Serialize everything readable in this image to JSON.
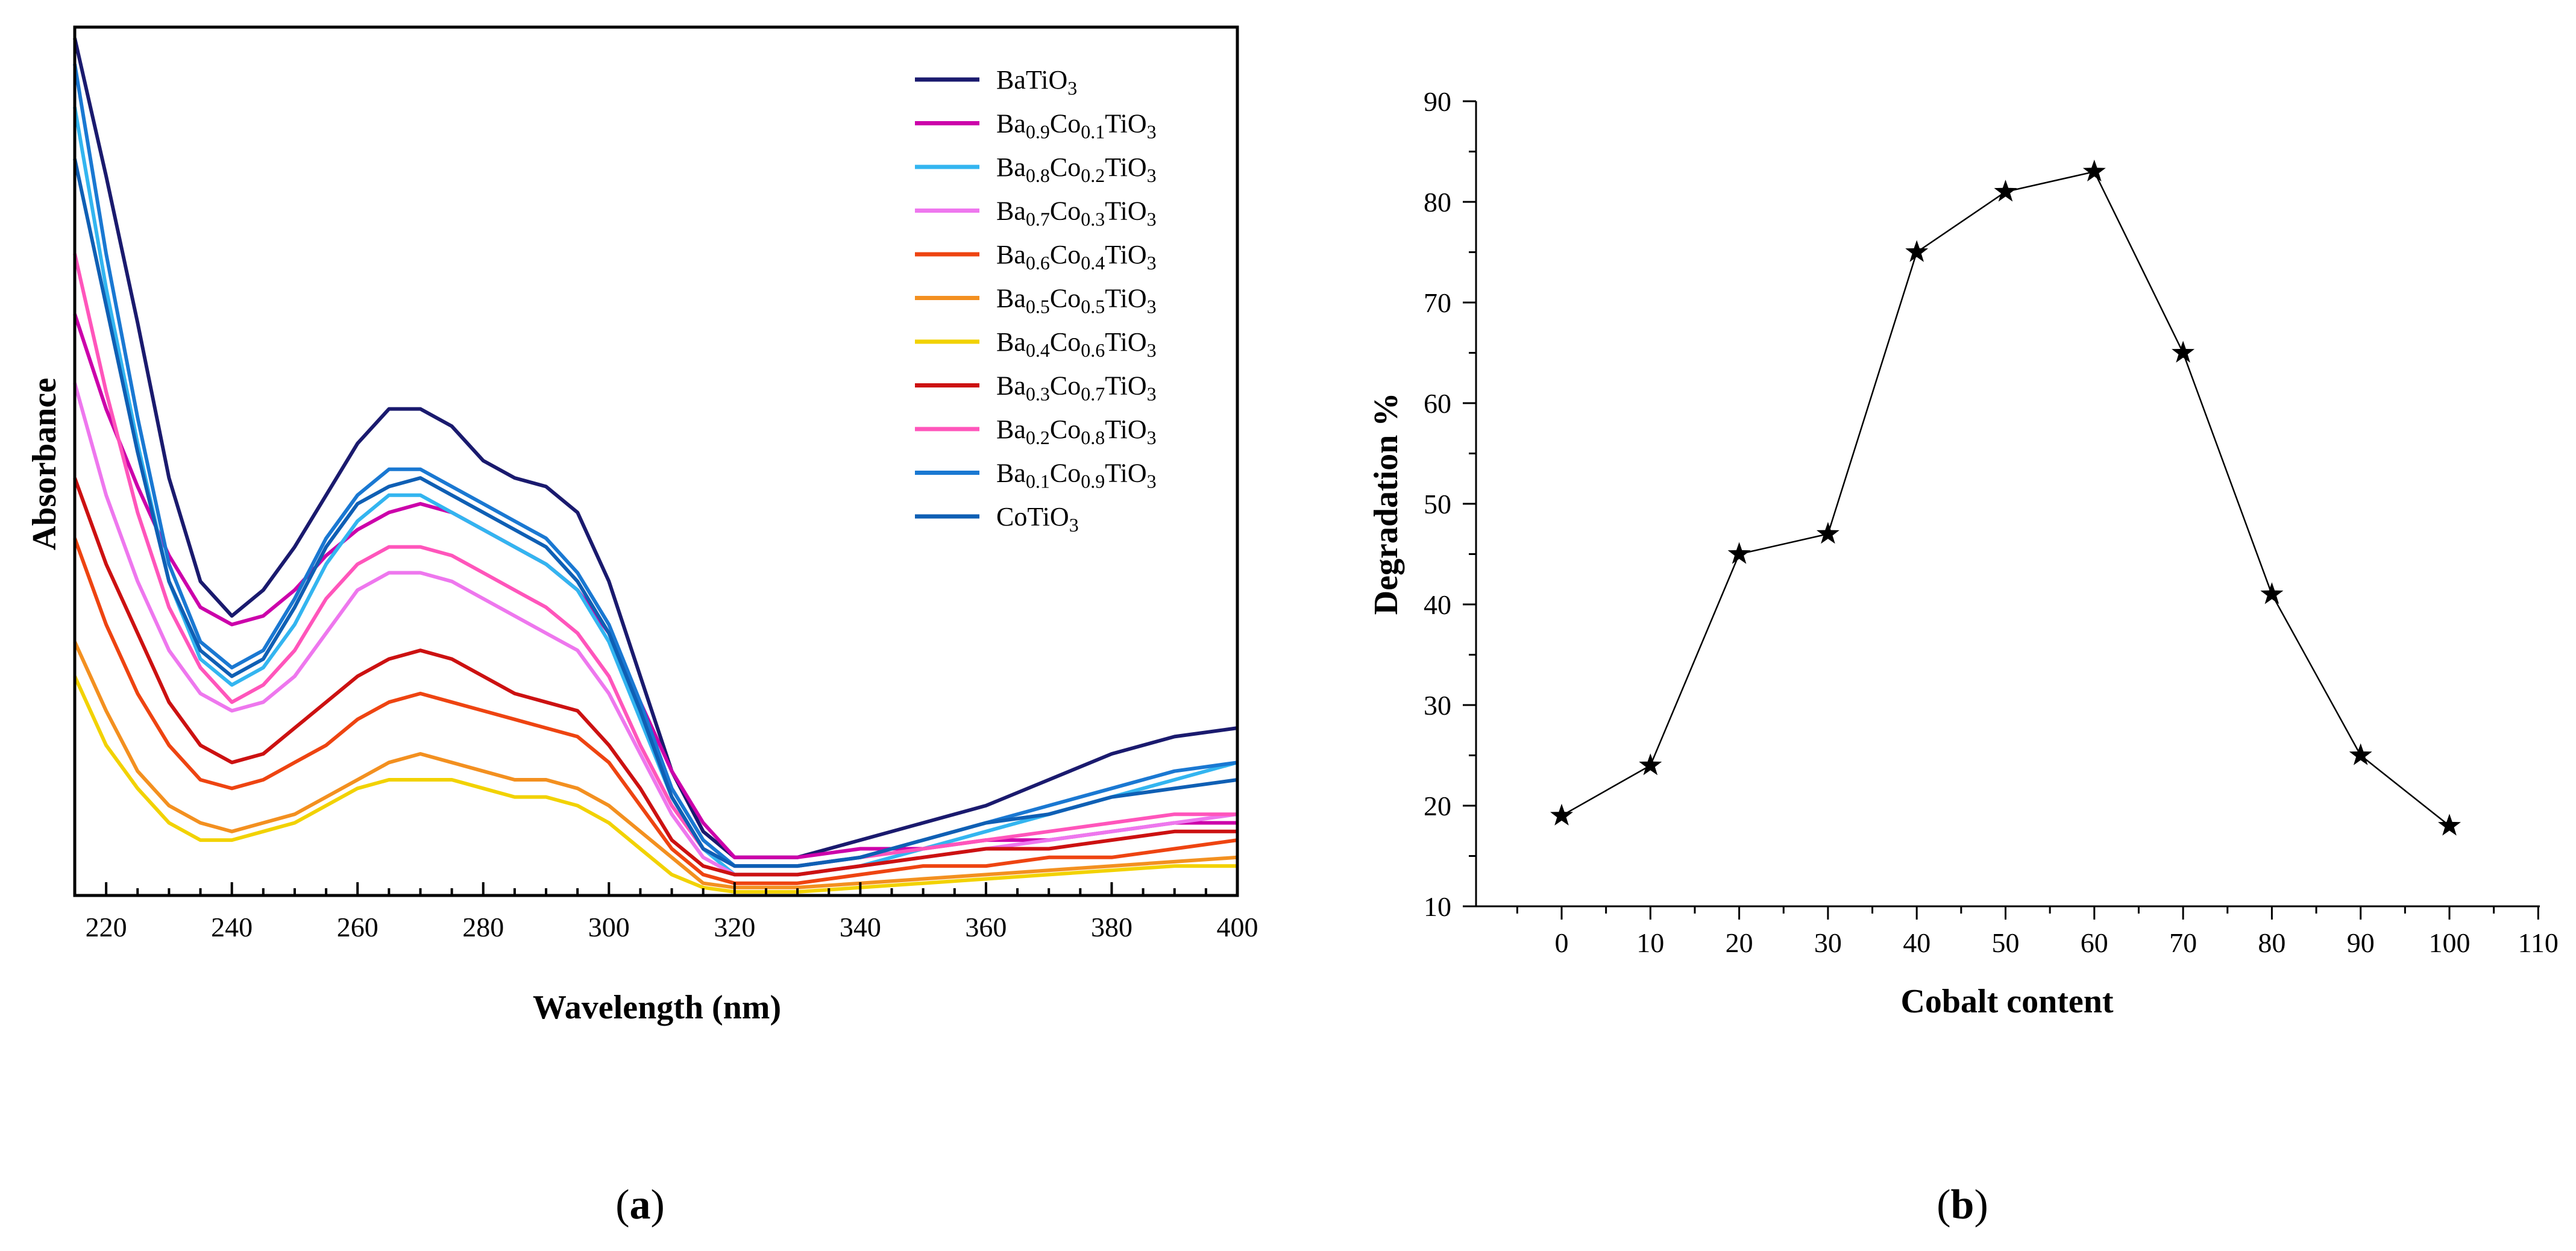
{
  "panels": {
    "a_label": "a",
    "b_label": "b"
  },
  "chart_data": [
    {
      "type": "line",
      "panel": "a",
      "title": "",
      "xlabel": "Wavelength (nm)",
      "ylabel": "Absorbance",
      "xlim": [
        215,
        400
      ],
      "ylim": [
        0,
        100
      ],
      "xticks": [
        220,
        240,
        260,
        280,
        300,
        320,
        340,
        360,
        380,
        400
      ],
      "y_tick_labels": false,
      "grid": false,
      "legend_position": "top-right",
      "x": [
        215,
        220,
        225,
        230,
        235,
        240,
        245,
        250,
        255,
        260,
        265,
        270,
        275,
        280,
        285,
        290,
        295,
        300,
        305,
        310,
        315,
        320,
        330,
        340,
        350,
        360,
        370,
        380,
        390,
        400
      ],
      "series": [
        {
          "name": "BaTiO3",
          "formula": [
            [
              "Ba",
              ""
            ],
            [
              "Ti",
              ""
            ],
            [
              "O",
              "3"
            ]
          ],
          "color": "#1a1a6e",
          "values": [
            99,
            83,
            66,
            48,
            36,
            32,
            35,
            40,
            46,
            52,
            56,
            56,
            54,
            50,
            48,
            47,
            44,
            36,
            25,
            14,
            7,
            4,
            4,
            6,
            8,
            10,
            13,
            16,
            18,
            19
          ]
        },
        {
          "name": "Ba0.9Co0.1TiO3",
          "formula": [
            [
              "Ba",
              "0.9"
            ],
            [
              "Co",
              "0.1"
            ],
            [
              "Ti",
              ""
            ],
            [
              "O",
              "3"
            ]
          ],
          "color": "#cc00aa",
          "values": [
            67,
            56,
            47,
            39,
            33,
            31,
            32,
            35,
            39,
            42,
            44,
            45,
            44,
            42,
            40,
            38,
            35,
            30,
            22,
            14,
            8,
            4,
            4,
            5,
            5,
            6,
            6,
            7,
            8,
            8
          ]
        },
        {
          "name": "Ba0.8Co0.2TiO3",
          "formula": [
            [
              "Ba",
              "0.8"
            ],
            [
              "Co",
              "0.2"
            ],
            [
              "Ti",
              ""
            ],
            [
              "O",
              "3"
            ]
          ],
          "color": "#33b5f0",
          "values": [
            91,
            70,
            52,
            36,
            27,
            24,
            26,
            31,
            38,
            43,
            46,
            46,
            44,
            42,
            40,
            38,
            35,
            29,
            20,
            11,
            5,
            2,
            2,
            3,
            5,
            7,
            9,
            11,
            13,
            15
          ]
        },
        {
          "name": "Ba0.7Co0.3TiO3",
          "formula": [
            [
              "Ba",
              "0.7"
            ],
            [
              "Co",
              "0.3"
            ],
            [
              "Ti",
              ""
            ],
            [
              "O",
              "3"
            ]
          ],
          "color": "#ee77ee",
          "values": [
            59,
            46,
            36,
            28,
            23,
            21,
            22,
            25,
            30,
            35,
            37,
            37,
            36,
            34,
            32,
            30,
            28,
            23,
            16,
            9,
            4,
            2,
            2,
            3,
            4,
            5,
            6,
            7,
            8,
            9
          ]
        },
        {
          "name": "Ba0.6Co0.4TiO3",
          "formula": [
            [
              "Ba",
              "0.6"
            ],
            [
              "Co",
              "0.4"
            ],
            [
              "Ti",
              ""
            ],
            [
              "O",
              "3"
            ]
          ],
          "color": "#ee4411",
          "values": [
            41,
            31,
            23,
            17,
            13,
            12,
            13,
            15,
            17,
            20,
            22,
            23,
            22,
            21,
            20,
            19,
            18,
            15,
            10,
            5,
            2,
            1,
            1,
            2,
            3,
            3,
            4,
            4,
            5,
            6
          ]
        },
        {
          "name": "Ba0.5Co0.5TiO3",
          "formula": [
            [
              "Ba",
              "0.5"
            ],
            [
              "Co",
              "0.5"
            ],
            [
              "Ti",
              ""
            ],
            [
              "O",
              "3"
            ]
          ],
          "color": "#f39020",
          "values": [
            29,
            21,
            14,
            10,
            8,
            7,
            8,
            9,
            11,
            13,
            15,
            16,
            15,
            14,
            13,
            13,
            12,
            10,
            7,
            4,
            1,
            0.5,
            0.5,
            1,
            1.5,
            2,
            2.5,
            3,
            3.5,
            4
          ]
        },
        {
          "name": "Ba0.4Co0.6TiO3",
          "formula": [
            [
              "Ba",
              "0.4"
            ],
            [
              "Co",
              "0.6"
            ],
            [
              "Ti",
              ""
            ],
            [
              "O",
              "3"
            ]
          ],
          "color": "#f2d200",
          "values": [
            25,
            17,
            12,
            8,
            6,
            6,
            7,
            8,
            10,
            12,
            13,
            13,
            13,
            12,
            11,
            11,
            10,
            8,
            5,
            2,
            0.5,
            0,
            0,
            0.5,
            1,
            1.5,
            2,
            2.5,
            3,
            3
          ]
        },
        {
          "name": "Ba0.3Co0.7TiO3",
          "formula": [
            [
              "Ba",
              "0.3"
            ],
            [
              "Co",
              "0.7"
            ],
            [
              "Ti",
              ""
            ],
            [
              "O",
              "3"
            ]
          ],
          "color": "#cc1111",
          "values": [
            48,
            38,
            30,
            22,
            17,
            15,
            16,
            19,
            22,
            25,
            27,
            28,
            27,
            25,
            23,
            22,
            21,
            17,
            12,
            6,
            3,
            2,
            2,
            3,
            4,
            5,
            5,
            6,
            7,
            7
          ]
        },
        {
          "name": "Ba0.2Co0.8TiO3",
          "formula": [
            [
              "Ba",
              "0.2"
            ],
            [
              "Co",
              "0.8"
            ],
            [
              "Ti",
              ""
            ],
            [
              "O",
              "3"
            ]
          ],
          "color": "#ff55bb",
          "values": [
            74,
            58,
            44,
            33,
            26,
            22,
            24,
            28,
            34,
            38,
            40,
            40,
            39,
            37,
            35,
            33,
            30,
            25,
            17,
            10,
            5,
            3,
            3,
            4,
            5,
            6,
            7,
            8,
            9,
            9
          ]
        },
        {
          "name": "Ba0.1Co0.9TiO3",
          "formula": [
            [
              "Ba",
              "0.1"
            ],
            [
              "Co",
              "0.9"
            ],
            [
              "Ti",
              ""
            ],
            [
              "O",
              "3"
            ]
          ],
          "color": "#1a78d2",
          "values": [
            96,
            74,
            55,
            38,
            29,
            26,
            28,
            34,
            41,
            46,
            49,
            49,
            47,
            45,
            43,
            41,
            37,
            31,
            22,
            12,
            6,
            3,
            3,
            4,
            6,
            8,
            10,
            12,
            14,
            15
          ]
        },
        {
          "name": "CoTiO3",
          "formula": [
            [
              "Co",
              ""
            ],
            [
              "Ti",
              ""
            ],
            [
              "O",
              "3"
            ]
          ],
          "color": "#0f5fb4",
          "values": [
            85,
            68,
            51,
            36,
            28,
            25,
            27,
            33,
            40,
            45,
            47,
            48,
            46,
            44,
            42,
            40,
            36,
            30,
            21,
            11,
            5,
            3,
            3,
            4,
            6,
            8,
            9,
            11,
            12,
            13
          ]
        }
      ]
    },
    {
      "type": "line",
      "panel": "b",
      "marker": "star",
      "title": "",
      "xlabel": "Cobalt content",
      "ylabel": "Degradation %",
      "xlim": [
        -10,
        110
      ],
      "ylim": [
        10,
        90
      ],
      "xticks": [
        0,
        10,
        20,
        30,
        40,
        50,
        60,
        70,
        80,
        90,
        100,
        110
      ],
      "yticks": [
        10,
        20,
        30,
        40,
        50,
        60,
        70,
        80,
        90
      ],
      "grid": false,
      "legend_position": "none",
      "series": [
        {
          "name": "Degradation",
          "x": [
            0,
            10,
            20,
            30,
            40,
            50,
            60,
            70,
            80,
            90,
            100
          ],
          "values": [
            19,
            24,
            45,
            47,
            75,
            81,
            83,
            65,
            41,
            25,
            18
          ]
        }
      ]
    }
  ]
}
